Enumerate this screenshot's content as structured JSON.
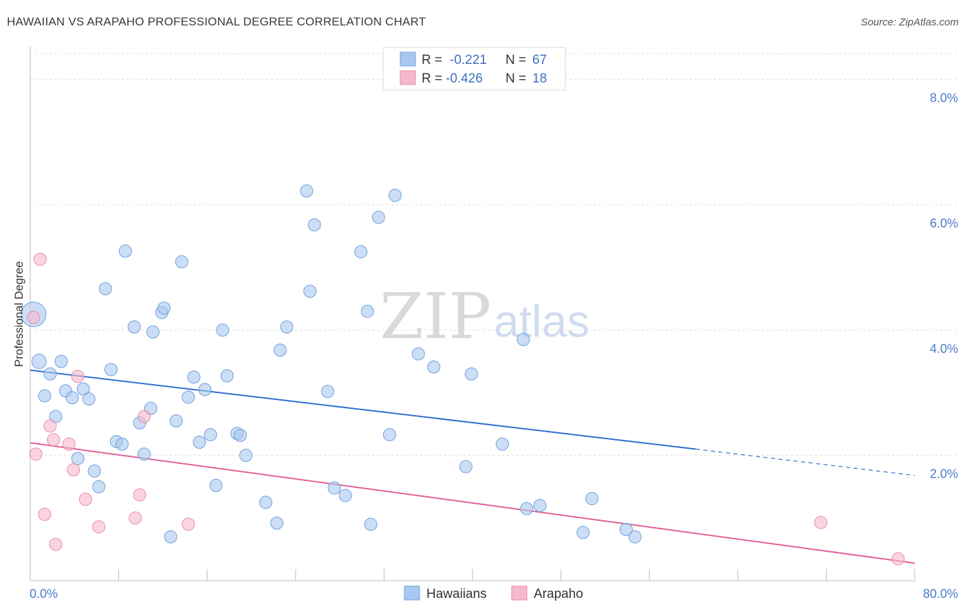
{
  "title": "HAWAIIAN VS ARAPAHO PROFESSIONAL DEGREE CORRELATION CHART",
  "source": "Source: ZipAtlas.com",
  "watermark": {
    "zip": "ZIP",
    "atlas": "atlas"
  },
  "legend": {
    "rows": [
      {
        "r_label": "R =",
        "r_value": "-0.221",
        "n_label": "N =",
        "n_value": "67",
        "color": "#a9c8ef"
      },
      {
        "r_label": "R =",
        "r_value": "-0.426",
        "n_label": "N =",
        "n_value": "18",
        "color": "#f6b9cc"
      }
    ]
  },
  "bottom_legend": [
    {
      "label": "Hawaiians",
      "color": "#a9c8ef"
    },
    {
      "label": "Arapaho",
      "color": "#f6b9cc"
    }
  ],
  "chart_data": {
    "type": "scatter",
    "title": "HAWAIIAN VS ARAPAHO PROFESSIONAL DEGREE CORRELATION CHART",
    "xlabel": "",
    "ylabel": "Professional Degree",
    "xlim": [
      0,
      80
    ],
    "ylim": [
      0,
      8.5
    ],
    "x_tick_labels": [
      "0.0%",
      "80.0%"
    ],
    "y_ticks": [
      2,
      4,
      6,
      8
    ],
    "y_tick_labels": [
      "2.0%",
      "4.0%",
      "6.0%",
      "8.0%"
    ],
    "grid": true,
    "legend_position": "top-center",
    "series": [
      {
        "name": "Hawaiians",
        "color": "#a9c8ef",
        "stroke": "#6f9fdc",
        "trend_color": "#2f6fd1",
        "trend": {
          "x0": 0,
          "y0": 3.36,
          "x1": 60.2,
          "y1": 2.1,
          "dash_to_x": 80,
          "dash_to_y": 1.68
        },
        "points": [
          [
            0.3,
            4.25,
            2
          ],
          [
            0.8,
            3.5,
            1
          ],
          [
            1.3,
            2.95,
            0
          ],
          [
            1.8,
            3.3,
            0
          ],
          [
            2.3,
            2.62,
            0
          ],
          [
            2.8,
            3.5,
            0
          ],
          [
            3.2,
            3.03,
            0
          ],
          [
            3.8,
            2.92,
            0
          ],
          [
            4.3,
            1.95,
            0
          ],
          [
            4.8,
            3.06,
            0
          ],
          [
            5.3,
            2.9,
            0
          ],
          [
            5.8,
            1.75,
            0
          ],
          [
            6.2,
            1.5,
            0
          ],
          [
            6.8,
            4.66,
            0
          ],
          [
            7.3,
            3.37,
            0
          ],
          [
            7.8,
            2.22,
            0
          ],
          [
            8.3,
            2.18,
            0
          ],
          [
            8.6,
            5.26,
            0
          ],
          [
            9.4,
            4.05,
            0
          ],
          [
            9.9,
            2.52,
            0
          ],
          [
            10.3,
            2.02,
            0
          ],
          [
            10.9,
            2.75,
            0
          ],
          [
            11.1,
            3.97,
            0
          ],
          [
            11.9,
            4.28,
            0
          ],
          [
            12.1,
            4.35,
            0
          ],
          [
            12.7,
            0.7,
            0
          ],
          [
            13.2,
            2.55,
            0
          ],
          [
            13.7,
            5.09,
            0
          ],
          [
            14.3,
            2.93,
            0
          ],
          [
            14.8,
            3.25,
            0
          ],
          [
            15.3,
            2.21,
            0
          ],
          [
            15.8,
            3.05,
            0
          ],
          [
            16.3,
            2.33,
            0
          ],
          [
            16.8,
            1.52,
            0
          ],
          [
            17.4,
            4.0,
            0
          ],
          [
            17.8,
            3.27,
            0
          ],
          [
            18.7,
            2.35,
            0
          ],
          [
            19.0,
            2.32,
            0
          ],
          [
            19.5,
            2.0,
            0
          ],
          [
            21.3,
            1.25,
            0
          ],
          [
            22.3,
            0.92,
            0
          ],
          [
            22.6,
            3.68,
            0
          ],
          [
            23.2,
            4.05,
            0
          ],
          [
            25.0,
            6.22,
            0
          ],
          [
            25.3,
            4.62,
            0
          ],
          [
            25.7,
            5.68,
            0
          ],
          [
            26.9,
            3.02,
            0
          ],
          [
            27.5,
            1.48,
            0
          ],
          [
            28.5,
            1.36,
            0
          ],
          [
            29.9,
            5.25,
            0
          ],
          [
            30.5,
            4.3,
            0
          ],
          [
            30.8,
            0.9,
            0
          ],
          [
            31.5,
            5.8,
            0
          ],
          [
            32.5,
            2.33,
            0
          ],
          [
            33.0,
            6.15,
            0
          ],
          [
            35.1,
            3.62,
            0
          ],
          [
            36.5,
            3.41,
            0
          ],
          [
            39.4,
            1.82,
            0
          ],
          [
            39.9,
            3.3,
            0
          ],
          [
            42.7,
            2.18,
            0
          ],
          [
            44.6,
            3.85,
            0
          ],
          [
            44.9,
            1.15,
            0
          ],
          [
            46.1,
            1.2,
            0
          ],
          [
            50.0,
            0.77,
            0
          ],
          [
            50.8,
            1.31,
            0
          ],
          [
            53.9,
            0.82,
            0
          ],
          [
            54.7,
            0.7,
            0
          ]
        ]
      },
      {
        "name": "Arapaho",
        "color": "#f6b9cc",
        "stroke": "#e88aa8",
        "trend_color": "#e0609a",
        "trend": {
          "x0": 0,
          "y0": 2.2,
          "x1": 80,
          "y1": 0.28
        },
        "points": [
          [
            0.3,
            4.2,
            0
          ],
          [
            0.5,
            2.02,
            0
          ],
          [
            0.9,
            5.13,
            0
          ],
          [
            1.3,
            1.06,
            0
          ],
          [
            1.8,
            2.47,
            0
          ],
          [
            2.1,
            2.25,
            0
          ],
          [
            2.3,
            0.58,
            0
          ],
          [
            3.5,
            2.18,
            0
          ],
          [
            3.9,
            1.77,
            0
          ],
          [
            4.3,
            3.26,
            0
          ],
          [
            5.0,
            1.3,
            0
          ],
          [
            6.2,
            0.86,
            0
          ],
          [
            9.5,
            1.0,
            0
          ],
          [
            9.9,
            1.37,
            0
          ],
          [
            10.3,
            2.62,
            0
          ],
          [
            14.3,
            0.9,
            0
          ],
          [
            71.5,
            0.93,
            0
          ],
          [
            78.5,
            0.35,
            0
          ]
        ]
      }
    ]
  }
}
